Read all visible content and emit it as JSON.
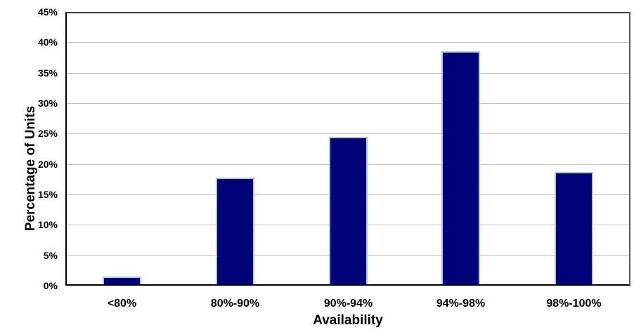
{
  "chart_data": {
    "type": "bar",
    "title": "",
    "categories": [
      "<80%",
      "80%-90%",
      "90%-94%",
      "94%-98%",
      "98%-100%"
    ],
    "values": [
      1.3,
      17.5,
      24.2,
      38.3,
      18.5
    ],
    "xlabel": "Availability",
    "ylabel": "Percentage of Units",
    "ylim": [
      0,
      45
    ],
    "ytick_step": 5,
    "ytick_suffix": "%",
    "grid": "horizontal-major",
    "legend": "none",
    "colors": {
      "bar_fill": "#010277",
      "bar_border": "#AEC6E8",
      "gridline": "#BFBFBF",
      "axis": "#000000",
      "plot_border": "#595959",
      "text": "#000000",
      "background": "#FFFFFF"
    }
  }
}
